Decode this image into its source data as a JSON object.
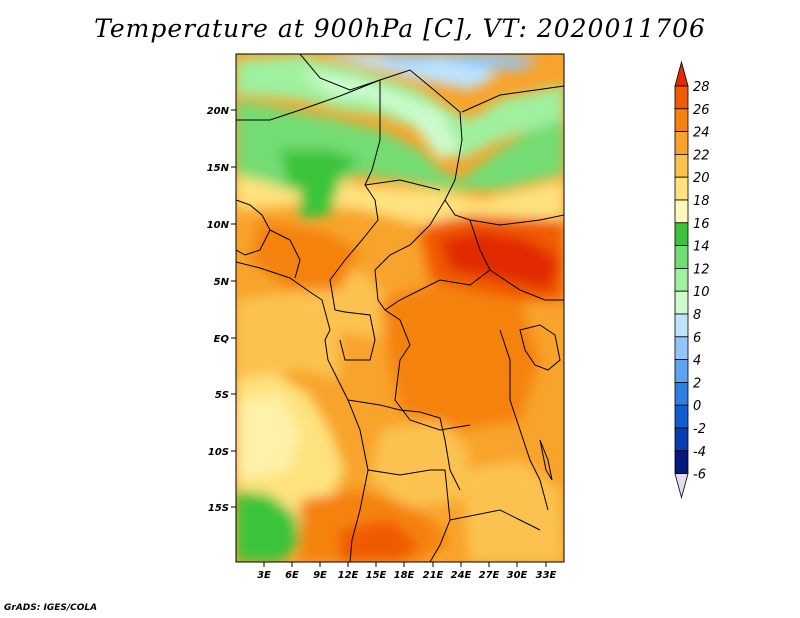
{
  "title": "Temperature at 900hPa [C], VT: 2020011706",
  "credit": "GrADS: IGES/COLA",
  "map": {
    "lat_ticks": [
      "20N",
      "15N",
      "10N",
      "5N",
      "EQ",
      "5S",
      "10S",
      "15S"
    ],
    "lon_ticks": [
      "3E",
      "6E",
      "9E",
      "12E",
      "15E",
      "18E",
      "21E",
      "24E",
      "27E",
      "30E",
      "33E"
    ]
  },
  "colorbar": {
    "labels": [
      "28",
      "26",
      "24",
      "22",
      "20",
      "18",
      "16",
      "14",
      "12",
      "10",
      "8",
      "6",
      "4",
      "2",
      "0",
      "-2",
      "-4",
      "-6"
    ],
    "colors": [
      "#e12b00",
      "#f05a00",
      "#f5820f",
      "#f8a32c",
      "#fbc24f",
      "#fee27e",
      "#fff8b8",
      "#3bc43b",
      "#73dc73",
      "#9ff09f",
      "#ccfbcc",
      "#bde3fd",
      "#91c6fb",
      "#5ea3f0",
      "#2e80e0",
      "#125ed0",
      "#0a3cb4",
      "#04187d",
      "#020a55",
      "#e6dcf0"
    ]
  }
}
